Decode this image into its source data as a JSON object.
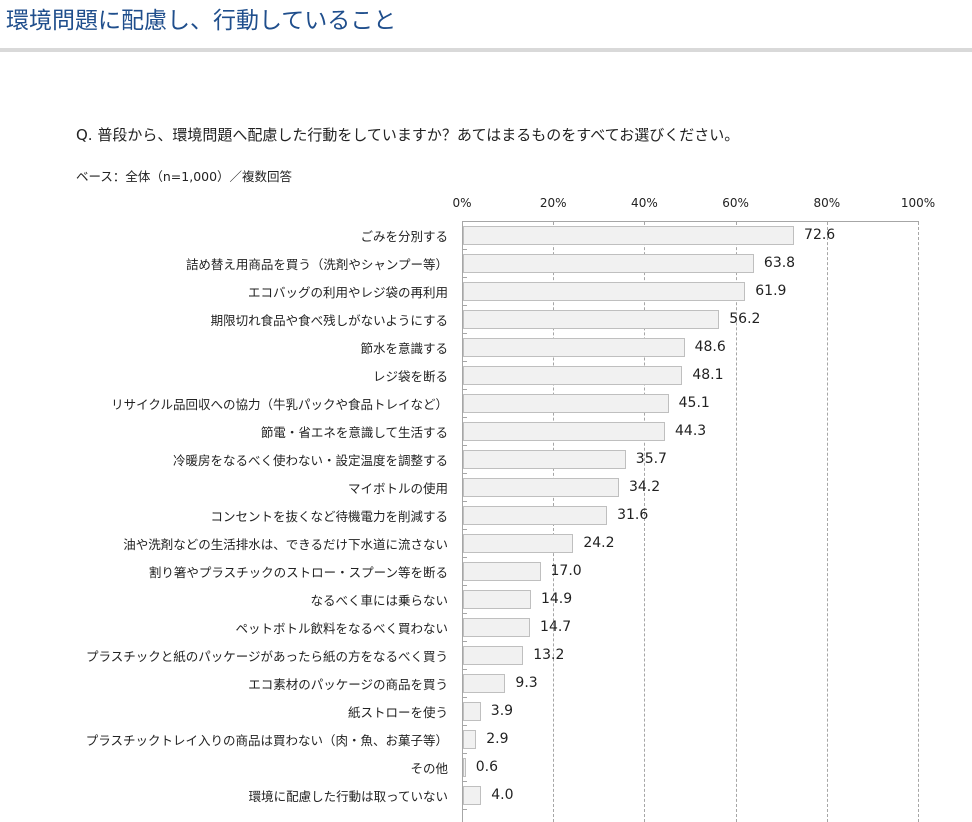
{
  "header": {
    "title": "環境問題に配慮し、行動していること"
  },
  "survey": {
    "question": "Q. 普段から、環境問題へ配慮した行動をしていますか？あてはまるものをすべてお選びください。",
    "base": "ベース：全体（n=1,000）／複数回答"
  },
  "colors": {
    "title": "#1f4e8c",
    "bar_fill": "#f1f1f1",
    "bar_border": "#bfbfbf",
    "grid": "#a6a6a6",
    "separator": "#d9d9d9"
  },
  "axis": {
    "ticks": [
      "0%",
      "20%",
      "40%",
      "60%",
      "80%",
      "100%"
    ]
  },
  "chart_data": {
    "type": "bar",
    "orientation": "horizontal",
    "title": "環境問題に配慮し、行動していること",
    "subtitle": "Q. 普段から、環境問題へ配慮した行動をしていますか？あてはまるものをすべてお選びください。",
    "note": "ベース：全体（n=1,000）／複数回答",
    "xlabel": "",
    "ylabel": "",
    "xlim": [
      0,
      100
    ],
    "tick_labels": [
      "0%",
      "20%",
      "40%",
      "60%",
      "80%",
      "100%"
    ],
    "grid": true,
    "legend": null,
    "categories": [
      "ごみを分別する",
      "詰め替え用商品を買う（洗剤やシャンプー等）",
      "エコバッグの利用やレジ袋の再利用",
      "期限切れ食品や食べ残しがないようにする",
      "節水を意識する",
      "レジ袋を断る",
      "リサイクル品回収への協力（牛乳パックや食品トレイなど）",
      "節電・省エネを意識して生活する",
      "冷暖房をなるべく使わない・設定温度を調整する",
      "マイボトルの使用",
      "コンセントを抜くなど待機電力を削減する",
      "油や洗剤などの生活排水は、できるだけ下水道に流さない",
      "割り箸やプラスチックのストロー・スプーン等を断る",
      "なるべく車には乗らない",
      "ペットボトル飲料をなるべく買わない",
      "プラスチックと紙のパッケージがあったら紙の方をなるべく買う",
      "エコ素材のパッケージの商品を買う",
      "紙ストローを使う",
      "プラスチックトレイ入りの商品は買わない（肉・魚、お菓子等）",
      "その他",
      "環境に配慮した行動は取っていない"
    ],
    "values": [
      72.6,
      63.8,
      61.9,
      56.2,
      48.6,
      48.1,
      45.1,
      44.3,
      35.7,
      34.2,
      31.6,
      24.2,
      17.0,
      14.9,
      14.7,
      13.2,
      9.3,
      3.9,
      2.9,
      0.6,
      4.0
    ],
    "value_labels": [
      "72.6",
      "63.8",
      "61.9",
      "56.2",
      "48.6",
      "48.1",
      "45.1",
      "44.3",
      "35.7",
      "34.2",
      "31.6",
      "24.2",
      "17.0",
      "14.9",
      "14.7",
      "13.2",
      "9.3",
      "3.9",
      "2.9",
      "0.6",
      "4.0"
    ]
  }
}
